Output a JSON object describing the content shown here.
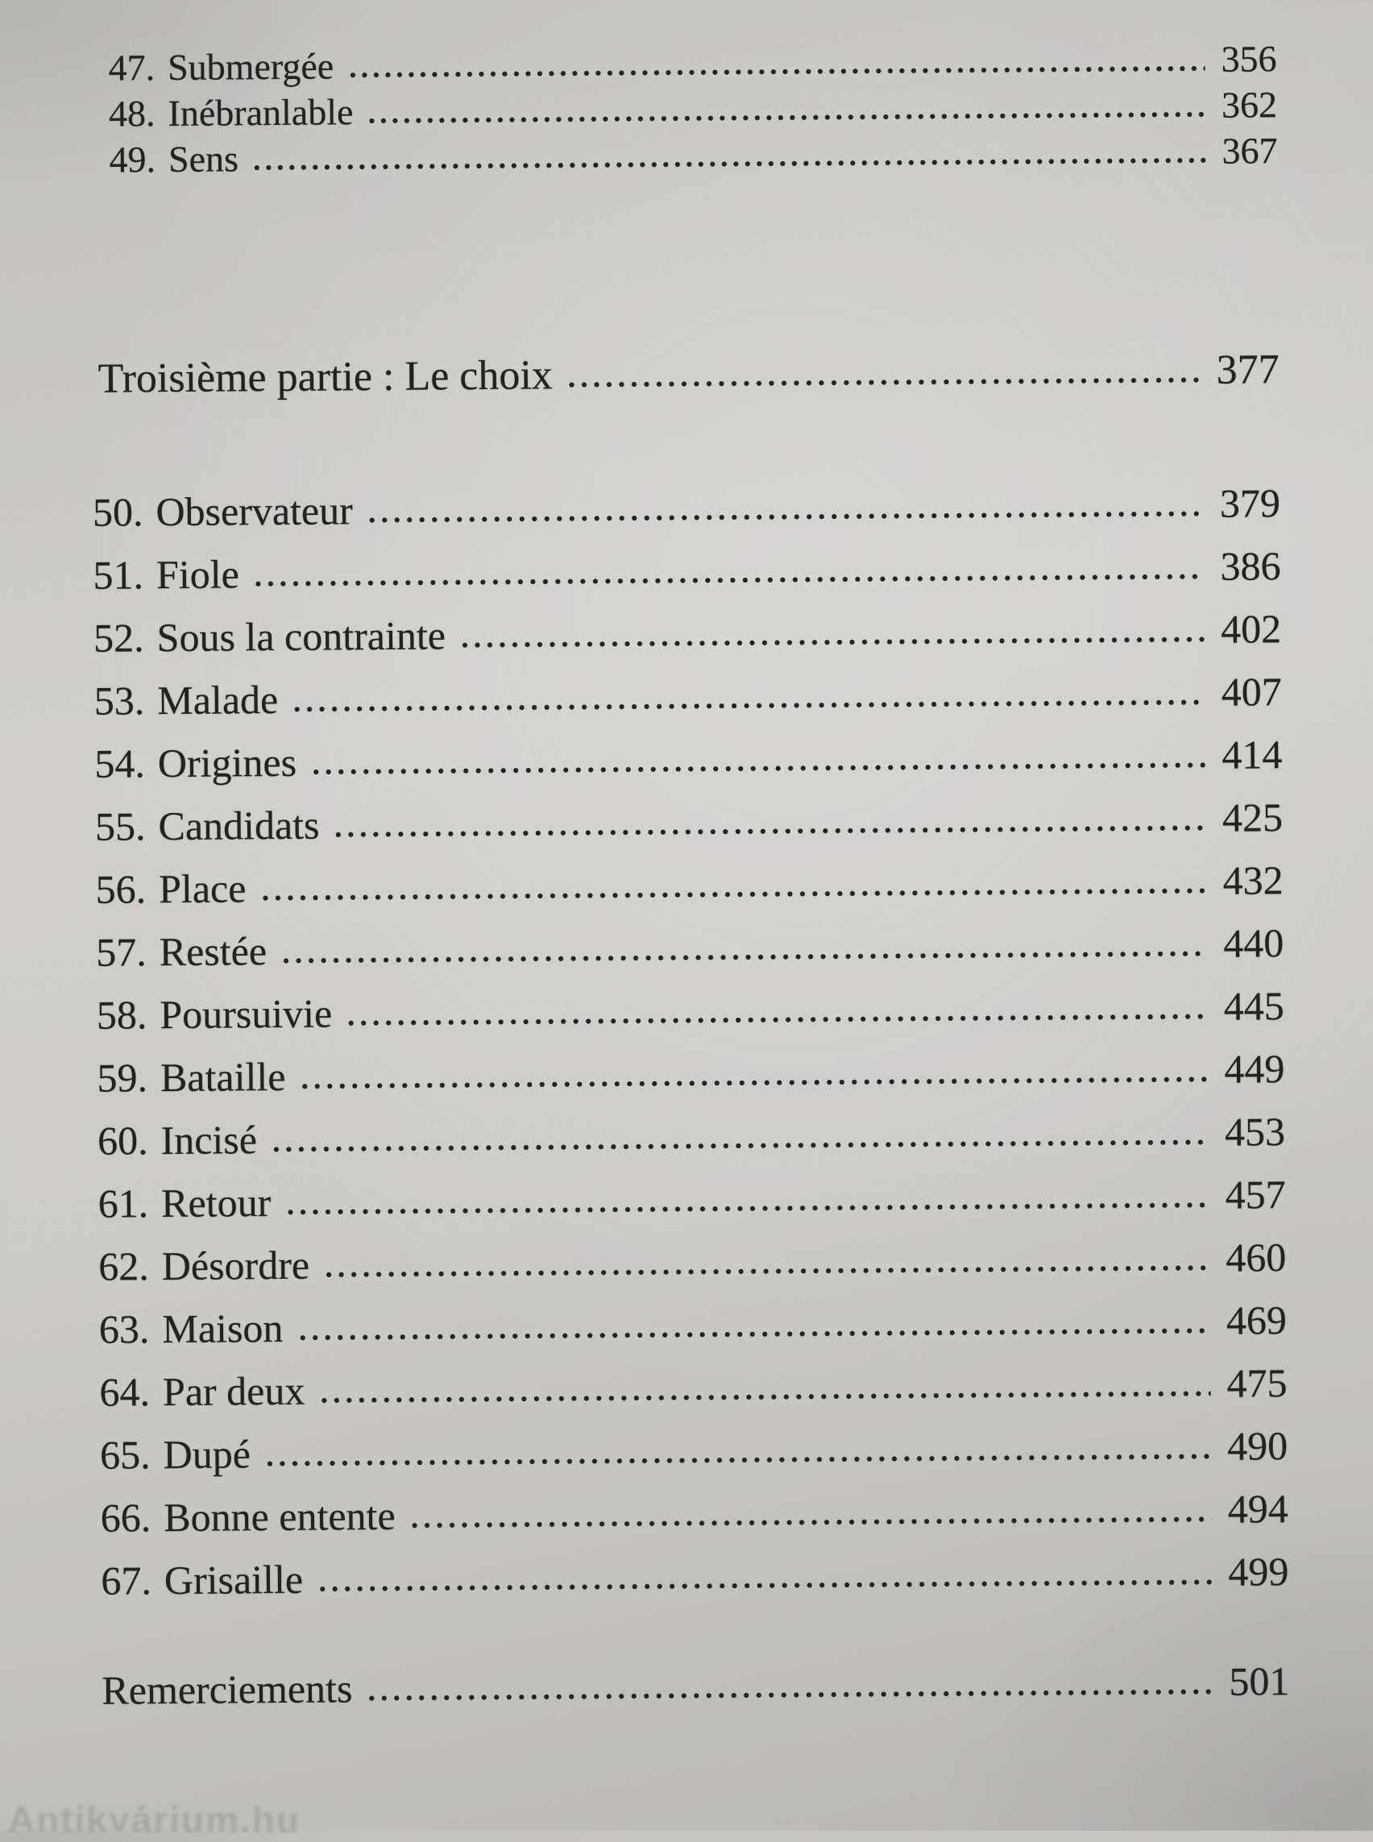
{
  "colors": {
    "paper": "#cccbc9",
    "ink": "#232321"
  },
  "watermark": "Antikvárium.hu",
  "toc": {
    "pre_entries": [
      {
        "num": "47.",
        "title": "Submergée",
        "page": "356"
      },
      {
        "num": "48.",
        "title": "Inébranlable",
        "page": "362"
      },
      {
        "num": "49.",
        "title": "Sens",
        "page": "367"
      }
    ],
    "part_heading": {
      "title": "Troisième partie : Le choix",
      "page": "377"
    },
    "entries": [
      {
        "num": "50.",
        "title": "Observateur",
        "page": "379"
      },
      {
        "num": "51.",
        "title": "Fiole",
        "page": "386"
      },
      {
        "num": "52.",
        "title": "Sous la contrainte",
        "page": "402"
      },
      {
        "num": "53.",
        "title": "Malade",
        "page": "407"
      },
      {
        "num": "54.",
        "title": "Origines",
        "page": "414"
      },
      {
        "num": "55.",
        "title": "Candidats",
        "page": "425"
      },
      {
        "num": "56.",
        "title": "Place",
        "page": "432"
      },
      {
        "num": "57.",
        "title": "Restée",
        "page": "440"
      },
      {
        "num": "58.",
        "title": "Poursuivie",
        "page": "445"
      },
      {
        "num": "59.",
        "title": "Bataille",
        "page": "449"
      },
      {
        "num": "60.",
        "title": "Incisé",
        "page": "453"
      },
      {
        "num": "61.",
        "title": "Retour",
        "page": "457"
      },
      {
        "num": "62.",
        "title": "Désordre",
        "page": "460"
      },
      {
        "num": "63.",
        "title": "Maison",
        "page": "469"
      },
      {
        "num": "64.",
        "title": "Par deux",
        "page": "475"
      },
      {
        "num": "65.",
        "title": "Dupé",
        "page": "490"
      },
      {
        "num": "66.",
        "title": "Bonne entente",
        "page": "494"
      },
      {
        "num": "67.",
        "title": "Grisaille",
        "page": "499"
      }
    ],
    "back_matter": [
      {
        "title": "Remerciements",
        "page": "501"
      }
    ]
  }
}
